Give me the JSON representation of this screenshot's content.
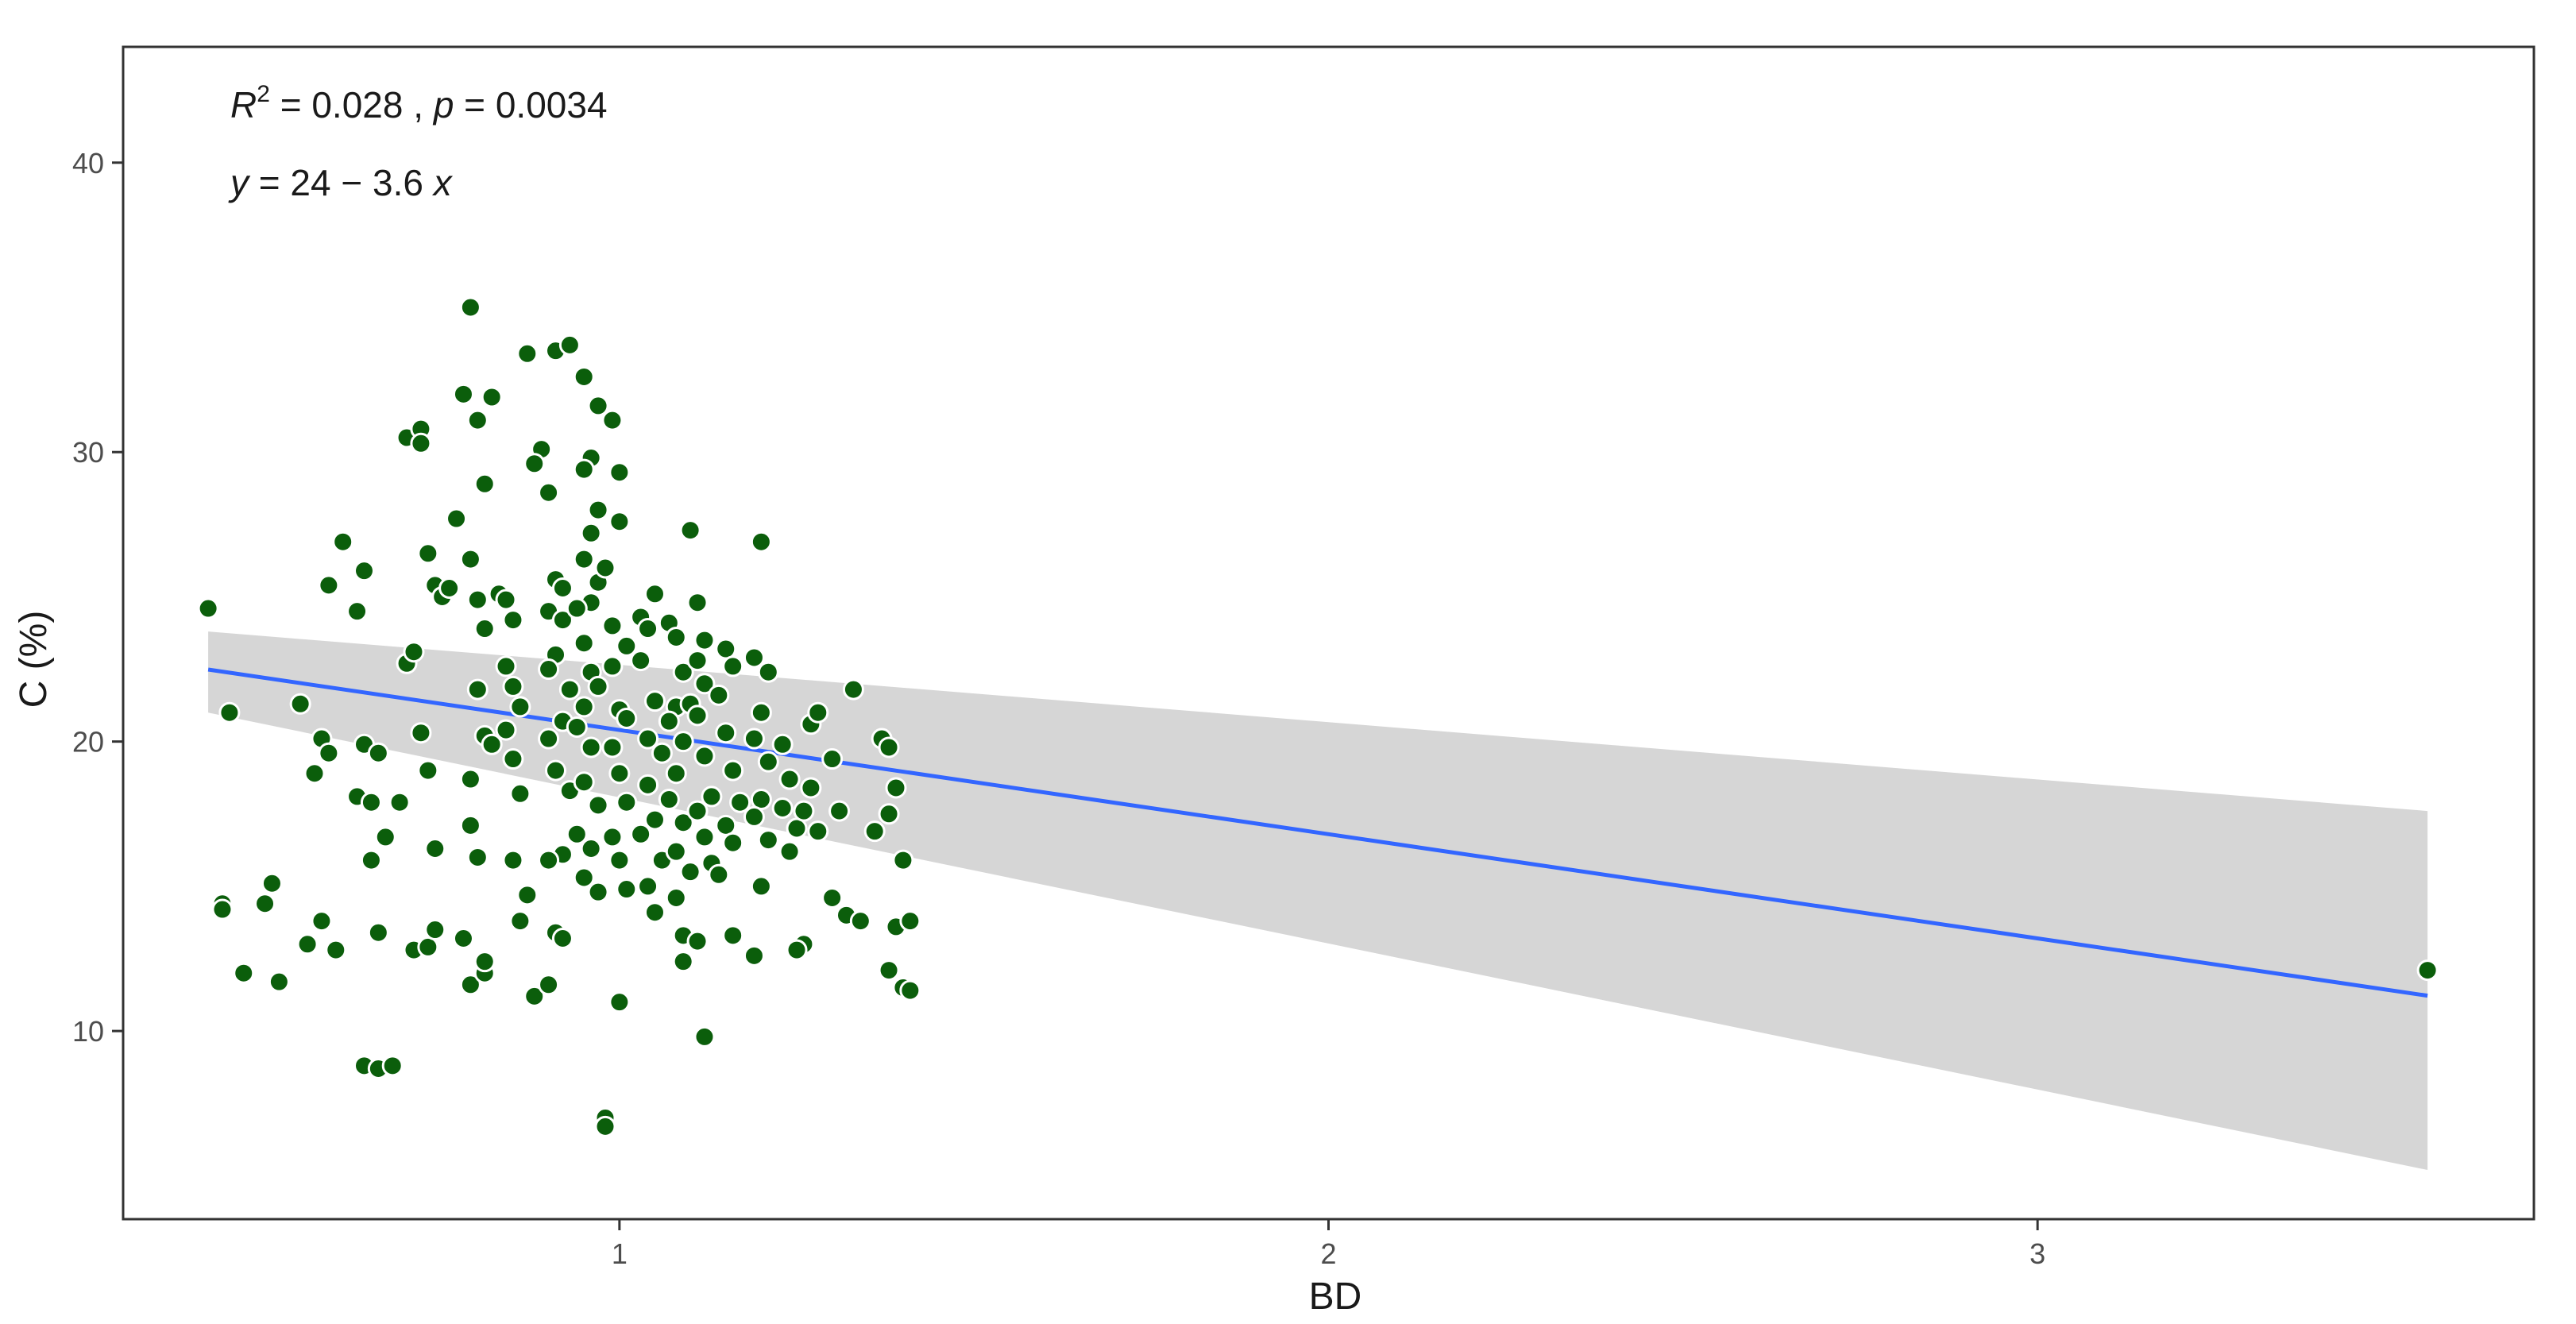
{
  "chart_data": {
    "type": "scatter",
    "xlabel": "BD",
    "ylabel": "C (%)",
    "xlim": [
      0.3,
      3.7
    ],
    "ylim": [
      3.5,
      44
    ],
    "x_ticks": [
      1,
      2,
      3
    ],
    "x_tick_labels": [
      "1",
      "2",
      "3"
    ],
    "y_ticks": [
      10,
      20,
      30,
      40
    ],
    "y_tick_labels": [
      "10",
      "20",
      "30",
      "40"
    ],
    "grid": false,
    "legend": "none",
    "annotation_stats": {
      "r2_prefix": "R",
      "r2_exponent": "2",
      "r2_value": " = 0.028 , ",
      "p_label": "p",
      "p_value": " = 0.0034"
    },
    "annotation_equation": {
      "y_var": "y",
      "body": " = 24 − 3.6 ",
      "x_var": "x"
    },
    "regression": {
      "intercept": 24,
      "slope": -3.6,
      "x_range": [
        0.42,
        3.55
      ],
      "ci_low_at_start": 21.0,
      "ci_high_at_start": 23.8,
      "ci_low_at_end": 5.2,
      "ci_high_at_end": 17.6
    },
    "colors": {
      "points": "#0b5e0b",
      "point_outline": "#ffffff",
      "line": "#3366ff",
      "ribbon": "#d6d6d6",
      "axis": "#333333",
      "tick_text": "#4d4d4d",
      "label_text": "#1a1a1a"
    },
    "points": [
      [
        0.42,
        24.6
      ],
      [
        0.45,
        21.0
      ],
      [
        0.47,
        12.0
      ],
      [
        0.44,
        14.4
      ],
      [
        0.44,
        14.2
      ],
      [
        0.52,
        11.7
      ],
      [
        0.51,
        15.1
      ],
      [
        0.5,
        14.4
      ],
      [
        0.55,
        21.3
      ],
      [
        0.57,
        18.9
      ],
      [
        0.58,
        20.1
      ],
      [
        0.59,
        19.6
      ],
      [
        0.56,
        13.0
      ],
      [
        0.58,
        13.8
      ],
      [
        0.6,
        12.8
      ],
      [
        0.59,
        25.4
      ],
      [
        0.61,
        26.9
      ],
      [
        0.63,
        24.5
      ],
      [
        0.64,
        25.9
      ],
      [
        0.63,
        18.1
      ],
      [
        0.64,
        19.9
      ],
      [
        0.66,
        19.6
      ],
      [
        0.65,
        17.9
      ],
      [
        0.67,
        16.7
      ],
      [
        0.65,
        15.9
      ],
      [
        0.66,
        13.4
      ],
      [
        0.64,
        8.8
      ],
      [
        0.66,
        8.7
      ],
      [
        0.68,
        8.8
      ],
      [
        0.69,
        17.9
      ],
      [
        0.7,
        22.7
      ],
      [
        0.71,
        23.1
      ],
      [
        0.7,
        30.5
      ],
      [
        0.72,
        30.8
      ],
      [
        0.72,
        30.3
      ],
      [
        0.73,
        26.5
      ],
      [
        0.74,
        25.4
      ],
      [
        0.75,
        25.0
      ],
      [
        0.72,
        20.3
      ],
      [
        0.73,
        19.0
      ],
      [
        0.74,
        16.3
      ],
      [
        0.71,
        12.8
      ],
      [
        0.73,
        12.9
      ],
      [
        0.74,
        13.5
      ],
      [
        0.76,
        25.3
      ],
      [
        0.77,
        27.7
      ],
      [
        0.78,
        32.0
      ],
      [
        0.79,
        35.0
      ],
      [
        0.8,
        31.1
      ],
      [
        0.81,
        28.9
      ],
      [
        0.82,
        31.9
      ],
      [
        0.79,
        26.3
      ],
      [
        0.8,
        24.9
      ],
      [
        0.81,
        23.9
      ],
      [
        0.8,
        21.8
      ],
      [
        0.81,
        20.2
      ],
      [
        0.82,
        19.9
      ],
      [
        0.79,
        18.7
      ],
      [
        0.79,
        17.1
      ],
      [
        0.8,
        16.0
      ],
      [
        0.78,
        13.2
      ],
      [
        0.79,
        11.6
      ],
      [
        0.81,
        12.0
      ],
      [
        0.81,
        12.4
      ],
      [
        0.83,
        25.1
      ],
      [
        0.84,
        24.9
      ],
      [
        0.85,
        24.2
      ],
      [
        0.84,
        22.6
      ],
      [
        0.85,
        21.9
      ],
      [
        0.86,
        21.2
      ],
      [
        0.84,
        20.4
      ],
      [
        0.85,
        19.4
      ],
      [
        0.86,
        18.2
      ],
      [
        0.85,
        15.9
      ],
      [
        0.87,
        14.7
      ],
      [
        0.86,
        13.8
      ],
      [
        0.88,
        11.2
      ],
      [
        0.87,
        33.4
      ],
      [
        0.89,
        30.1
      ],
      [
        0.88,
        29.6
      ],
      [
        0.9,
        28.6
      ],
      [
        0.91,
        33.5
      ],
      [
        0.93,
        33.7
      ],
      [
        0.91,
        25.6
      ],
      [
        0.92,
        25.3
      ],
      [
        0.9,
        24.5
      ],
      [
        0.92,
        24.2
      ],
      [
        0.91,
        23.0
      ],
      [
        0.9,
        22.5
      ],
      [
        0.93,
        21.8
      ],
      [
        0.92,
        20.7
      ],
      [
        0.9,
        20.1
      ],
      [
        0.91,
        19.0
      ],
      [
        0.93,
        18.3
      ],
      [
        0.92,
        16.1
      ],
      [
        0.9,
        15.9
      ],
      [
        0.91,
        13.4
      ],
      [
        0.92,
        13.2
      ],
      [
        0.9,
        11.6
      ],
      [
        0.95,
        32.6
      ],
      [
        0.97,
        31.6
      ],
      [
        0.96,
        29.8
      ],
      [
        0.95,
        29.4
      ],
      [
        0.97,
        28.0
      ],
      [
        0.96,
        27.2
      ],
      [
        0.95,
        26.3
      ],
      [
        0.97,
        25.5
      ],
      [
        0.96,
        24.8
      ],
      [
        0.94,
        24.6
      ],
      [
        0.95,
        23.4
      ],
      [
        0.96,
        22.4
      ],
      [
        0.97,
        21.9
      ],
      [
        0.95,
        21.2
      ],
      [
        0.94,
        20.5
      ],
      [
        0.96,
        19.8
      ],
      [
        0.95,
        18.6
      ],
      [
        0.97,
        17.8
      ],
      [
        0.94,
        16.8
      ],
      [
        0.96,
        16.3
      ],
      [
        0.95,
        15.3
      ],
      [
        0.97,
        14.8
      ],
      [
        0.99,
        31.1
      ],
      [
        1.0,
        29.3
      ],
      [
        1.0,
        27.6
      ],
      [
        0.98,
        26.0
      ],
      [
        0.99,
        24.0
      ],
      [
        1.01,
        23.3
      ],
      [
        0.99,
        22.6
      ],
      [
        1.0,
        21.1
      ],
      [
        1.01,
        20.8
      ],
      [
        0.99,
        19.8
      ],
      [
        1.0,
        18.9
      ],
      [
        1.01,
        17.9
      ],
      [
        0.99,
        16.7
      ],
      [
        1.0,
        15.9
      ],
      [
        1.01,
        14.9
      ],
      [
        1.0,
        11.0
      ],
      [
        0.98,
        7.0
      ],
      [
        0.98,
        6.7
      ],
      [
        1.03,
        24.3
      ],
      [
        1.04,
        23.9
      ],
      [
        1.05,
        25.1
      ],
      [
        1.03,
        22.8
      ],
      [
        1.05,
        21.4
      ],
      [
        1.04,
        20.1
      ],
      [
        1.06,
        19.6
      ],
      [
        1.04,
        18.5
      ],
      [
        1.05,
        17.3
      ],
      [
        1.03,
        16.8
      ],
      [
        1.06,
        15.9
      ],
      [
        1.04,
        15.0
      ],
      [
        1.05,
        14.1
      ],
      [
        1.07,
        24.1
      ],
      [
        1.08,
        23.6
      ],
      [
        1.09,
        22.4
      ],
      [
        1.08,
        21.2
      ],
      [
        1.07,
        20.7
      ],
      [
        1.09,
        20.0
      ],
      [
        1.08,
        18.9
      ],
      [
        1.07,
        18.0
      ],
      [
        1.09,
        17.2
      ],
      [
        1.08,
        16.2
      ],
      [
        1.1,
        15.5
      ],
      [
        1.08,
        14.6
      ],
      [
        1.09,
        13.3
      ],
      [
        1.09,
        12.4
      ],
      [
        1.1,
        27.3
      ],
      [
        1.11,
        24.8
      ],
      [
        1.12,
        23.5
      ],
      [
        1.11,
        22.8
      ],
      [
        1.12,
        22.0
      ],
      [
        1.1,
        21.3
      ],
      [
        1.11,
        20.9
      ],
      [
        1.12,
        19.5
      ],
      [
        1.13,
        18.1
      ],
      [
        1.11,
        17.6
      ],
      [
        1.12,
        16.7
      ],
      [
        1.13,
        15.8
      ],
      [
        1.11,
        13.1
      ],
      [
        1.12,
        9.8
      ],
      [
        1.15,
        23.2
      ],
      [
        1.16,
        22.6
      ],
      [
        1.14,
        21.6
      ],
      [
        1.15,
        20.3
      ],
      [
        1.16,
        19.0
      ],
      [
        1.17,
        17.9
      ],
      [
        1.15,
        17.1
      ],
      [
        1.16,
        16.5
      ],
      [
        1.14,
        15.4
      ],
      [
        1.16,
        13.3
      ],
      [
        1.19,
        22.9
      ],
      [
        1.2,
        26.9
      ],
      [
        1.21,
        22.4
      ],
      [
        1.2,
        21.0
      ],
      [
        1.19,
        20.1
      ],
      [
        1.21,
        19.3
      ],
      [
        1.2,
        18.0
      ],
      [
        1.19,
        17.4
      ],
      [
        1.21,
        16.6
      ],
      [
        1.2,
        15.0
      ],
      [
        1.19,
        12.6
      ],
      [
        1.23,
        19.9
      ],
      [
        1.24,
        18.7
      ],
      [
        1.23,
        17.7
      ],
      [
        1.25,
        17.0
      ],
      [
        1.24,
        16.2
      ],
      [
        1.26,
        13.0
      ],
      [
        1.25,
        12.8
      ],
      [
        1.27,
        20.6
      ],
      [
        1.28,
        21.0
      ],
      [
        1.27,
        18.4
      ],
      [
        1.26,
        17.6
      ],
      [
        1.28,
        16.9
      ],
      [
        1.3,
        19.4
      ],
      [
        1.31,
        17.6
      ],
      [
        1.3,
        14.6
      ],
      [
        1.32,
        14.0
      ],
      [
        1.33,
        21.8
      ],
      [
        1.34,
        13.8
      ],
      [
        1.36,
        16.9
      ],
      [
        1.37,
        20.1
      ],
      [
        1.38,
        19.8
      ],
      [
        1.39,
        18.4
      ],
      [
        1.38,
        17.5
      ],
      [
        1.4,
        15.9
      ],
      [
        1.38,
        12.1
      ],
      [
        1.39,
        13.6
      ],
      [
        1.41,
        13.8
      ],
      [
        1.4,
        11.5
      ],
      [
        1.41,
        11.4
      ],
      [
        3.55,
        12.1
      ]
    ]
  }
}
